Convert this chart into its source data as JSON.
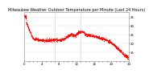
{
  "title": "Milwaukee Weather Outdoor Temperature per Minute (Last 24 Hours)",
  "line_color": "#ff0000",
  "background_color": "#ffffff",
  "plot_bg_color": "#ffffff",
  "grid_color": "#dddddd",
  "y_axis_side": "right",
  "ylim": [
    10,
    38
  ],
  "yticks": [
    15,
    20,
    25,
    30,
    35
  ],
  "vlines": [
    0.29,
    0.54
  ],
  "vline_color": "#999999",
  "vline_style": ":",
  "num_points": 1440,
  "title_fontsize": 3.5,
  "tick_fontsize": 2.8,
  "linewidth": 0.6
}
